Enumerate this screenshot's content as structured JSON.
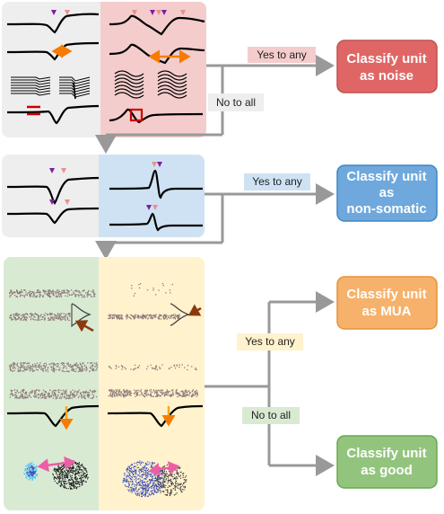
{
  "stages": [
    {
      "id": "noise",
      "yes_label": "Yes to any",
      "no_label": "No to all",
      "output": {
        "lines": [
          "Classify unit",
          "as noise"
        ],
        "fill": "#e06666",
        "stroke": "#c0504d"
      },
      "panel_colors": {
        "left": "#eeeeee",
        "right": "#f4cccc"
      }
    },
    {
      "id": "non-somatic",
      "yes_label": "Yes to any",
      "output": {
        "lines": [
          "Classify unit",
          "as",
          "non-somatic"
        ],
        "fill": "#6fa8dc",
        "stroke": "#3d85c6"
      },
      "panel_colors": {
        "left": "#eeeeee",
        "right": "#cfe2f3"
      }
    },
    {
      "id": "mua-good",
      "yes_label": "Yes to any",
      "no_label": "No to all",
      "output_yes": {
        "lines": [
          "Classify unit",
          "as MUA"
        ],
        "fill": "#f6b26b",
        "stroke": "#e69138"
      },
      "output_no": {
        "lines": [
          "Classify unit",
          "as good"
        ],
        "fill": "#93c47d",
        "stroke": "#6aa84f"
      },
      "panel_colors": {
        "left": "#d9ead3",
        "right": "#fff2cc"
      }
    }
  ],
  "colors": {
    "arrow": "#999999",
    "marker_purple": "#7b1fa2",
    "marker_pink": "#ea8f8f",
    "accent_orange": "#f57c00",
    "accent_red": "#cc0000",
    "scatter": "#8d7b7b",
    "cluster_blue": "#3f51b5",
    "cluster_pink": "#ec5fa8"
  }
}
